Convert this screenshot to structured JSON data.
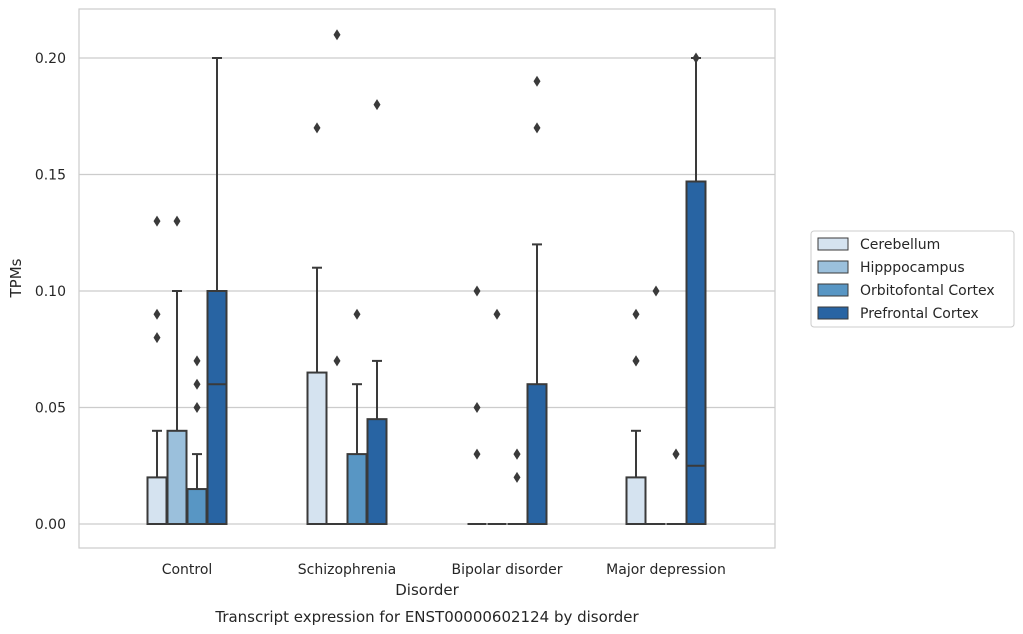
{
  "chart_data": {
    "type": "boxplot",
    "xlabel": "Disorder",
    "ylabel": "TPMs",
    "caption": "Transcript expression for ENST00000602124 by disorder",
    "ylim": [
      -0.01,
      0.222
    ],
    "yticks": [
      0.0,
      0.05,
      0.1,
      0.15,
      0.2
    ],
    "ytick_labels": [
      "0.00",
      "0.05",
      "0.10",
      "0.15",
      "0.20"
    ],
    "grid": "horizontal",
    "legend_placement": "right",
    "categories": [
      "Control",
      "Schizophrenia",
      "Bipolar disorder",
      "Major depression"
    ],
    "series": [
      {
        "name": "Cerebellum",
        "color": "#d5e3f0",
        "boxes": [
          {
            "whisker_low": 0.0,
            "q1": 0.0,
            "median": 0.0,
            "q3": 0.02,
            "whisker_high": 0.04,
            "outliers": [
              0.08,
              0.09,
              0.13
            ]
          },
          {
            "whisker_low": 0.0,
            "q1": 0.0,
            "median": 0.0,
            "q3": 0.065,
            "whisker_high": 0.11,
            "outliers": [
              0.17
            ]
          },
          {
            "whisker_low": 0.0,
            "q1": 0.0,
            "median": 0.0,
            "q3": 0.0,
            "whisker_high": 0.0,
            "outliers": [
              0.03,
              0.05,
              0.1
            ]
          },
          {
            "whisker_low": 0.0,
            "q1": 0.0,
            "median": 0.0,
            "q3": 0.02,
            "whisker_high": 0.04,
            "outliers": [
              0.07,
              0.07,
              0.09
            ]
          }
        ]
      },
      {
        "name": "Hipppocampus",
        "color": "#9bc0dc",
        "boxes": [
          {
            "whisker_low": 0.0,
            "q1": 0.0,
            "median": 0.0,
            "q3": 0.04,
            "whisker_high": 0.1,
            "outliers": [
              0.13
            ]
          },
          {
            "whisker_low": 0.0,
            "q1": 0.0,
            "median": 0.0,
            "q3": 0.0,
            "whisker_high": 0.0,
            "outliers": [
              0.07,
              0.21
            ]
          },
          {
            "whisker_low": 0.0,
            "q1": 0.0,
            "median": 0.0,
            "q3": 0.0,
            "whisker_high": 0.0,
            "outliers": [
              0.09
            ]
          },
          {
            "whisker_low": 0.0,
            "q1": 0.0,
            "median": 0.0,
            "q3": 0.0,
            "whisker_high": 0.0,
            "outliers": [
              0.1
            ]
          }
        ]
      },
      {
        "name": "Orbitofontal Cortex",
        "color": "#5896c4",
        "boxes": [
          {
            "whisker_low": 0.0,
            "q1": 0.0,
            "median": 0.0,
            "q3": 0.015,
            "whisker_high": 0.03,
            "outliers": [
              0.05,
              0.06,
              0.07
            ]
          },
          {
            "whisker_low": 0.0,
            "q1": 0.0,
            "median": 0.0,
            "q3": 0.03,
            "whisker_high": 0.06,
            "outliers": [
              0.09
            ]
          },
          {
            "whisker_low": 0.0,
            "q1": 0.0,
            "median": 0.0,
            "q3": 0.0,
            "whisker_high": 0.0,
            "outliers": [
              0.02,
              0.03,
              0.03
            ]
          },
          {
            "whisker_low": 0.0,
            "q1": 0.0,
            "median": 0.0,
            "q3": 0.0,
            "whisker_high": 0.0,
            "outliers": [
              0.03,
              0.03
            ]
          }
        ]
      },
      {
        "name": "Prefrontal Cortex",
        "color": "#2864a3",
        "boxes": [
          {
            "whisker_low": 0.0,
            "q1": 0.0,
            "median": 0.06,
            "q3": 0.1,
            "whisker_high": 0.2,
            "outliers": []
          },
          {
            "whisker_low": 0.0,
            "q1": 0.0,
            "median": 0.0,
            "q3": 0.045,
            "whisker_high": 0.07,
            "outliers": [
              0.18
            ]
          },
          {
            "whisker_low": 0.0,
            "q1": 0.0,
            "median": 0.0,
            "q3": 0.06,
            "whisker_high": 0.12,
            "outliers": [
              0.17,
              0.19
            ]
          },
          {
            "whisker_low": 0.0,
            "q1": 0.0,
            "median": 0.025,
            "q3": 0.147,
            "whisker_high": 0.2,
            "outliers": [
              0.2
            ]
          }
        ]
      }
    ]
  }
}
